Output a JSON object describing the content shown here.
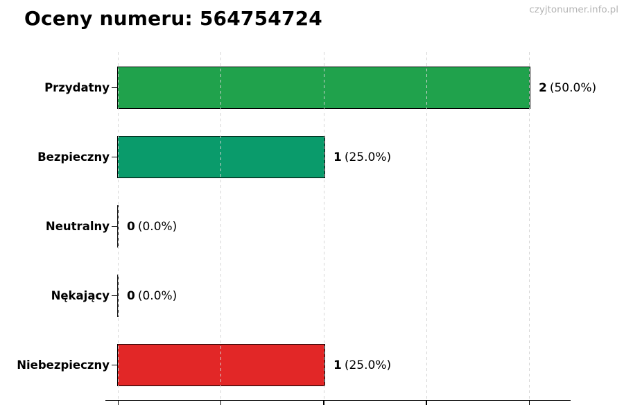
{
  "header": {
    "title": "Oceny numeru: 564754724",
    "watermark": "czyjtonumer.info.pl"
  },
  "chart_data": {
    "type": "bar",
    "orientation": "horizontal",
    "title": "Oceny numeru: 564754724",
    "categories": [
      "Przydatny",
      "Bezpieczny",
      "Neutralny",
      "Nękający",
      "Niebezpieczny"
    ],
    "values": [
      2,
      1,
      0,
      0,
      1
    ],
    "rows": [
      {
        "id": "przydatny",
        "category": "Przydatny",
        "value": 2,
        "value_label": "2",
        "pct_label": "(50.0%)",
        "color": "#20a24c"
      },
      {
        "id": "bezpieczny",
        "category": "Bezpieczny",
        "value": 1,
        "value_label": "1",
        "pct_label": "(25.0%)",
        "color": "#0a9b6b"
      },
      {
        "id": "neutralny",
        "category": "Neutralny",
        "value": 0,
        "value_label": "0",
        "pct_label": "(0.0%)",
        "color": "#1a1a1a"
      },
      {
        "id": "nekajacy",
        "category": "Nękający",
        "value": 0,
        "value_label": "0",
        "pct_label": "(0.0%)",
        "color": "#1a1a1a"
      },
      {
        "id": "niebezpieczny",
        "category": "Niebezpieczny",
        "value": 1,
        "value_label": "1",
        "pct_label": "(25.0%)",
        "color": "#e22727"
      }
    ],
    "xlabel": "",
    "ylabel": "",
    "xlim": [
      0,
      2.2
    ],
    "x_gridlines": [
      0,
      0.5,
      1.0,
      1.5,
      2.0
    ],
    "grid": true,
    "gridline_style": "dashed",
    "gridline_color": "#d4d4d4",
    "bar_edge_color": "#000000",
    "legend": "none"
  }
}
